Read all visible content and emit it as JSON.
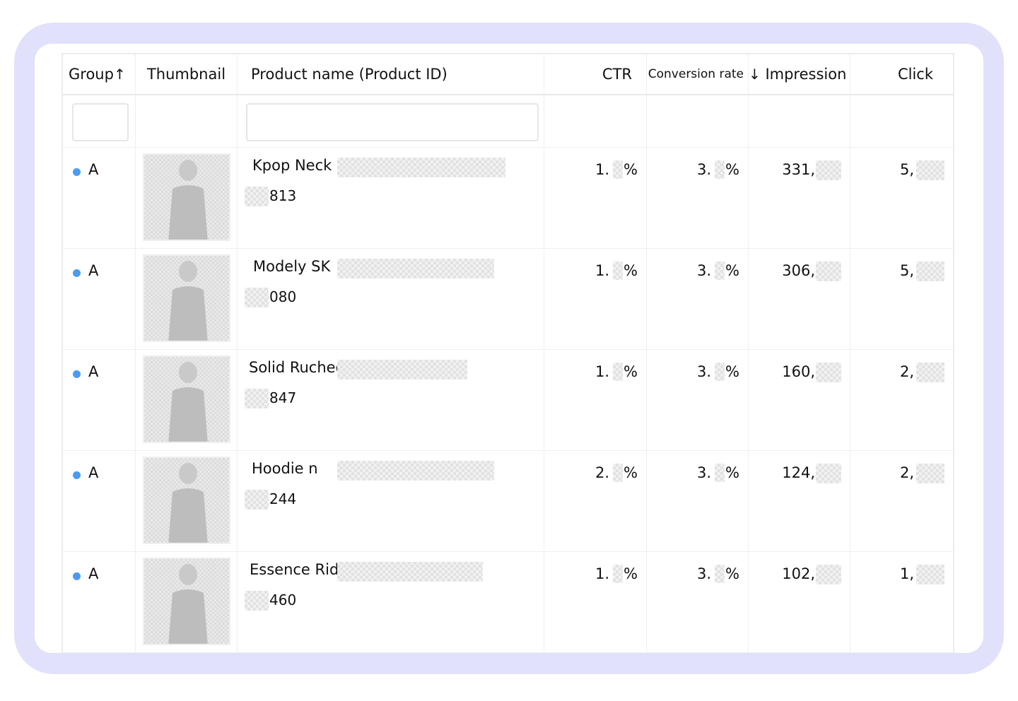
{
  "colors": {
    "frame": "#e1e1fb",
    "group_dot": "#4b9bf0"
  },
  "table": {
    "headers": {
      "group": "Group",
      "group_sort_icon": "arrow-up-icon",
      "thumbnail": "Thumbnail",
      "product_name": "Product name (Product ID)",
      "ctr": "CTR",
      "conversion_rate": "Conversion rate",
      "impression_sort_icon": "arrow-down-icon",
      "impression": "Impression",
      "click": "Click"
    },
    "rows": [
      {
        "group": "A",
        "name": "Kpop Neck",
        "id_suffix": "813",
        "ctr": "1.",
        "ctr_unit": "%",
        "conv": "3.",
        "conv_unit": "%",
        "impression": "331,",
        "click": "5,"
      },
      {
        "group": "A",
        "name": "Modely SK",
        "id_suffix": "080",
        "ctr": "1.",
        "ctr_unit": "%",
        "conv": "3.",
        "conv_unit": "%",
        "impression": "306,",
        "click": "5,"
      },
      {
        "group": "A",
        "name": "Solid Ruched",
        "id_suffix": "847",
        "ctr": "1.",
        "ctr_unit": "%",
        "conv": "3.",
        "conv_unit": "%",
        "impression": "160,",
        "click": "2,"
      },
      {
        "group": "A",
        "name": "Hoodie n",
        "id_suffix": "244",
        "ctr": "2.",
        "ctr_unit": "%",
        "conv": "3.",
        "conv_unit": "%",
        "impression": "124,",
        "click": "2,"
      },
      {
        "group": "A",
        "name": "Essence Rid",
        "id_suffix": "460",
        "ctr": "1.",
        "ctr_unit": "%",
        "conv": "3.",
        "conv_unit": "%",
        "impression": "102,",
        "click": "1,"
      }
    ]
  }
}
